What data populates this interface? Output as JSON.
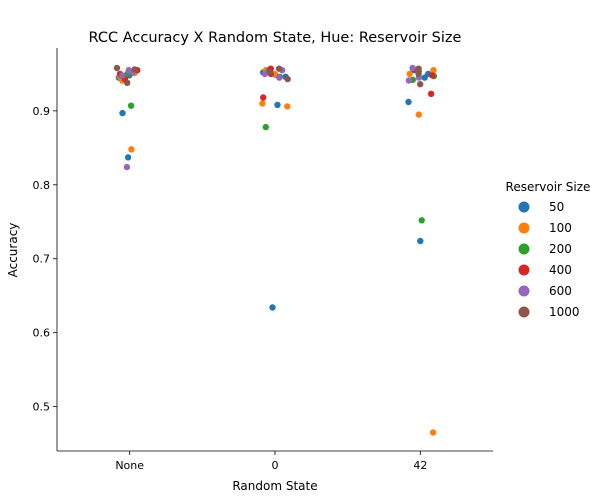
{
  "chart_data": {
    "type": "scatter",
    "title": "RCC Accuracy X Random State, Hue: Reservoir Size",
    "xlabel": "Random State",
    "ylabel": "Accuracy",
    "categories": [
      "None",
      "0",
      "42"
    ],
    "ylim": [
      0.44,
      0.985
    ],
    "yticks": [
      "0.5",
      "0.6",
      "0.7",
      "0.8",
      "0.9"
    ],
    "grid": false,
    "legend": {
      "title": "Reservoir Size",
      "placement": "right"
    },
    "series": [
      {
        "name": "50",
        "color": "#1f77b4",
        "points": [
          {
            "x": "None",
            "y": 0.948
          },
          {
            "x": "None",
            "y": 0.952
          },
          {
            "x": "None",
            "y": 0.945
          },
          {
            "x": "None",
            "y": 0.897
          },
          {
            "x": "None",
            "y": 0.837
          },
          {
            "x": "0",
            "y": 0.949
          },
          {
            "x": "0",
            "y": 0.952
          },
          {
            "x": "0",
            "y": 0.946
          },
          {
            "x": "0",
            "y": 0.908
          },
          {
            "x": "0",
            "y": 0.634
          },
          {
            "x": "42",
            "y": 0.955
          },
          {
            "x": "42",
            "y": 0.95
          },
          {
            "x": "42",
            "y": 0.945
          },
          {
            "x": "42",
            "y": 0.912
          },
          {
            "x": "42",
            "y": 0.724
          }
        ]
      },
      {
        "name": "100",
        "color": "#ff7f0e",
        "points": [
          {
            "x": "None",
            "y": 0.941
          },
          {
            "x": "None",
            "y": 0.951
          },
          {
            "x": "None",
            "y": 0.946
          },
          {
            "x": "None",
            "y": 0.848
          },
          {
            "x": "0",
            "y": 0.95
          },
          {
            "x": "0",
            "y": 0.955
          },
          {
            "x": "0",
            "y": 0.91
          },
          {
            "x": "0",
            "y": 0.906
          },
          {
            "x": "42",
            "y": 0.955
          },
          {
            "x": "42",
            "y": 0.95
          },
          {
            "x": "42",
            "y": 0.895
          },
          {
            "x": "42",
            "y": 0.465
          }
        ]
      },
      {
        "name": "200",
        "color": "#2ca02c",
        "points": [
          {
            "x": "None",
            "y": 0.948
          },
          {
            "x": "None",
            "y": 0.95
          },
          {
            "x": "None",
            "y": 0.907
          },
          {
            "x": "0",
            "y": 0.946
          },
          {
            "x": "0",
            "y": 0.955
          },
          {
            "x": "0",
            "y": 0.878
          },
          {
            "x": "42",
            "y": 0.947
          },
          {
            "x": "42",
            "y": 0.953
          },
          {
            "x": "42",
            "y": 0.942
          },
          {
            "x": "42",
            "y": 0.752
          }
        ]
      },
      {
        "name": "400",
        "color": "#d62728",
        "points": [
          {
            "x": "None",
            "y": 0.943
          },
          {
            "x": "None",
            "y": 0.95
          },
          {
            "x": "None",
            "y": 0.955
          },
          {
            "x": "0",
            "y": 0.957
          },
          {
            "x": "0",
            "y": 0.95
          },
          {
            "x": "0",
            "y": 0.918
          },
          {
            "x": "42",
            "y": 0.948
          },
          {
            "x": "42",
            "y": 0.957
          },
          {
            "x": "42",
            "y": 0.923
          }
        ]
      },
      {
        "name": "600",
        "color": "#9467bd",
        "points": [
          {
            "x": "None",
            "y": 0.955
          },
          {
            "x": "None",
            "y": 0.948
          },
          {
            "x": "None",
            "y": 0.952
          },
          {
            "x": "None",
            "y": 0.824
          },
          {
            "x": "0",
            "y": 0.955
          },
          {
            "x": "0",
            "y": 0.945
          },
          {
            "x": "0",
            "y": 0.95
          },
          {
            "x": "42",
            "y": 0.958
          },
          {
            "x": "42",
            "y": 0.945
          },
          {
            "x": "42",
            "y": 0.941
          }
        ]
      },
      {
        "name": "1000",
        "color": "#8c564b",
        "points": [
          {
            "x": "None",
            "y": 0.958
          },
          {
            "x": "None",
            "y": 0.938
          },
          {
            "x": "None",
            "y": 0.956
          },
          {
            "x": "0",
            "y": 0.957
          },
          {
            "x": "0",
            "y": 0.943
          },
          {
            "x": "0",
            "y": 0.952
          },
          {
            "x": "42",
            "y": 0.957
          },
          {
            "x": "42",
            "y": 0.936
          },
          {
            "x": "42",
            "y": 0.95
          }
        ]
      }
    ]
  }
}
